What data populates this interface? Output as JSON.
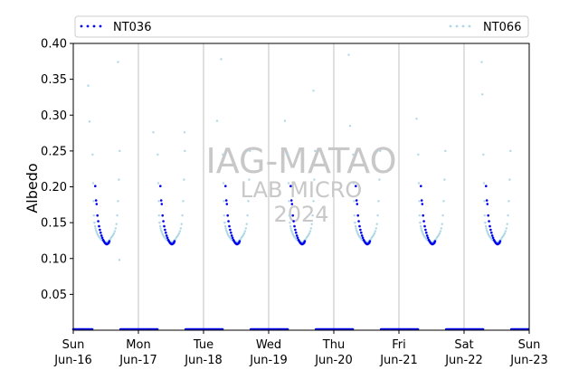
{
  "chart_data": {
    "type": "scatter",
    "title": "",
    "xlabel": "",
    "ylabel": "Albedo",
    "ylim": [
      0.0,
      0.4
    ],
    "xlim": [
      "2024-06-16 00:00",
      "2024-06-23 00:00"
    ],
    "yticks": [
      0.05,
      0.1,
      0.15,
      0.2,
      0.25,
      0.3,
      0.35,
      0.4
    ],
    "ytick_labels": [
      "0.05",
      "0.10",
      "0.15",
      "0.20",
      "0.25",
      "0.30",
      "0.35",
      "0.40"
    ],
    "xticks": [
      {
        "date": "2024-06-16",
        "day": "Sun",
        "label": "Jun-16"
      },
      {
        "date": "2024-06-17",
        "day": "Mon",
        "label": "Jun-17"
      },
      {
        "date": "2024-06-18",
        "day": "Tue",
        "label": "Jun-18"
      },
      {
        "date": "2024-06-19",
        "day": "Wed",
        "label": "Jun-19"
      },
      {
        "date": "2024-06-20",
        "day": "Thu",
        "label": "Jun-20"
      },
      {
        "date": "2024-06-21",
        "day": "Fri",
        "label": "Jun-21"
      },
      {
        "date": "2024-06-22",
        "day": "Sat",
        "label": "Jun-22"
      },
      {
        "date": "2024-06-23",
        "day": "Sun",
        "label": "Jun-23"
      }
    ],
    "grid": "vertical at day boundaries",
    "legend": "top",
    "watermark": [
      "IAG-MATAO",
      "LAB MICRO",
      "2024"
    ],
    "daily_pattern": {
      "day_start_hour": 7.0,
      "day_end_hour": 17.4,
      "night_value": 0.0
    },
    "series": [
      {
        "name": "NT036",
        "color": "#0000ee",
        "daytime_points": [
          [
            8.1,
            0.201
          ],
          [
            8.4,
            0.181
          ],
          [
            8.6,
            0.176
          ],
          [
            8.9,
            0.16
          ],
          [
            9.2,
            0.152
          ],
          [
            9.5,
            0.145
          ],
          [
            9.8,
            0.14
          ],
          [
            10.1,
            0.136
          ],
          [
            10.4,
            0.132
          ],
          [
            10.7,
            0.129
          ],
          [
            11.0,
            0.126
          ],
          [
            11.3,
            0.124
          ],
          [
            11.6,
            0.122
          ],
          [
            11.9,
            0.121
          ],
          [
            12.2,
            0.12
          ],
          [
            12.5,
            0.12
          ],
          [
            12.8,
            0.121
          ],
          [
            13.1,
            0.122
          ],
          [
            13.3,
            0.124
          ]
        ]
      },
      {
        "name": "NT066",
        "color": "#add8e6",
        "daytime_points": [
          [
            7.1,
            0.245
          ],
          [
            7.3,
            0.205
          ],
          [
            7.5,
            0.18
          ],
          [
            7.6,
            0.16
          ],
          [
            7.8,
            0.15
          ],
          [
            8.0,
            0.145
          ],
          [
            8.2,
            0.142
          ],
          [
            8.4,
            0.139
          ],
          [
            8.6,
            0.137
          ],
          [
            8.8,
            0.135
          ],
          [
            9.0,
            0.133
          ],
          [
            9.3,
            0.131
          ],
          [
            9.6,
            0.13
          ],
          [
            9.9,
            0.128
          ],
          [
            10.2,
            0.127
          ],
          [
            10.5,
            0.126
          ],
          [
            10.8,
            0.125
          ],
          [
            11.1,
            0.124
          ],
          [
            11.4,
            0.124
          ],
          [
            11.7,
            0.123
          ],
          [
            12.0,
            0.123
          ],
          [
            12.3,
            0.123
          ],
          [
            12.6,
            0.123
          ],
          [
            12.9,
            0.124
          ],
          [
            13.2,
            0.125
          ],
          [
            13.5,
            0.126
          ],
          [
            13.8,
            0.128
          ],
          [
            14.1,
            0.13
          ],
          [
            14.4,
            0.131
          ],
          [
            14.7,
            0.133
          ],
          [
            15.0,
            0.135
          ],
          [
            15.3,
            0.138
          ],
          [
            15.6,
            0.142
          ],
          [
            15.9,
            0.148
          ],
          [
            16.2,
            0.16
          ],
          [
            16.5,
            0.18
          ],
          [
            16.8,
            0.21
          ],
          [
            17.1,
            0.25
          ]
        ]
      }
    ],
    "peaks": [
      {
        "series": "NT066",
        "x": "2024-06-16 16:30",
        "y": 0.374
      },
      {
        "series": "NT066",
        "x": "2024-06-16 05:30",
        "y": 0.341
      },
      {
        "series": "NT066",
        "x": "2024-06-16 06:00",
        "y": 0.291
      },
      {
        "series": "NT066",
        "x": "2024-06-17 05:30",
        "y": 0.276
      },
      {
        "series": "NT066",
        "x": "2024-06-17 17:00",
        "y": 0.276
      },
      {
        "series": "NT066",
        "x": "2024-06-18 06:30",
        "y": 0.378
      },
      {
        "series": "NT066",
        "x": "2024-06-18 05:00",
        "y": 0.292
      },
      {
        "series": "NT066",
        "x": "2024-06-19 06:00",
        "y": 0.292
      },
      {
        "series": "NT066",
        "x": "2024-06-19 16:30",
        "y": 0.334
      },
      {
        "series": "NT066",
        "x": "2024-06-20 05:30",
        "y": 0.384
      },
      {
        "series": "NT066",
        "x": "2024-06-20 06:00",
        "y": 0.285
      },
      {
        "series": "NT066",
        "x": "2024-06-21 06:30",
        "y": 0.295
      },
      {
        "series": "NT066",
        "x": "2024-06-22 06:30",
        "y": 0.374
      },
      {
        "series": "NT066",
        "x": "2024-06-22 06:45",
        "y": 0.329
      },
      {
        "series": "NT066",
        "x": "2024-06-16 17:00",
        "y": 0.098
      }
    ]
  }
}
